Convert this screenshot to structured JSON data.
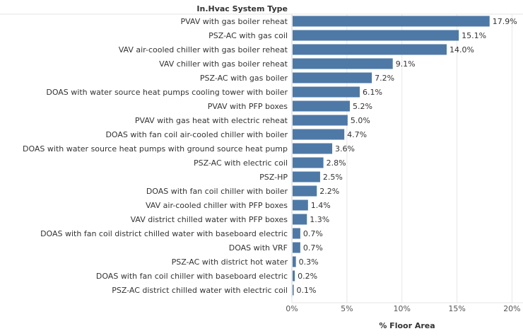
{
  "chart_data": {
    "type": "bar",
    "orientation": "horizontal",
    "row_header": "In.Hvac System Type",
    "xlabel": "% Floor Area",
    "xlim": [
      0,
      21
    ],
    "xticks": [
      0,
      5,
      10,
      15,
      20
    ],
    "xtick_labels": [
      "0%",
      "5%",
      "10%",
      "15%",
      "20%"
    ],
    "grid": true,
    "bar_color": "#4e79a7",
    "categories": [
      "PVAV with gas boiler reheat",
      "PSZ-AC with gas coil",
      "VAV air-cooled chiller with gas boiler reheat",
      "VAV chiller with gas boiler reheat",
      "PSZ-AC with gas boiler",
      "DOAS with water source heat pumps cooling tower with boiler",
      "PVAV with PFP boxes",
      "PVAV with gas heat with electric reheat",
      "DOAS with fan coil air-cooled chiller with boiler",
      "DOAS with water source heat pumps with ground source heat pump",
      "PSZ-AC with electric coil",
      "PSZ-HP",
      "DOAS with fan coil chiller with boiler",
      "VAV air-cooled chiller with PFP boxes",
      "VAV district chilled water with PFP boxes",
      "DOAS with fan coil district chilled water with baseboard electric",
      "DOAS with VRF",
      "PSZ-AC with district hot water",
      "DOAS with fan coil chiller with baseboard electric",
      "PSZ-AC district chilled water with electric coil"
    ],
    "values": [
      17.9,
      15.1,
      14.0,
      9.1,
      7.2,
      6.1,
      5.2,
      5.0,
      4.7,
      3.6,
      2.8,
      2.5,
      2.2,
      1.4,
      1.3,
      0.7,
      0.7,
      0.3,
      0.2,
      0.1
    ],
    "value_labels": [
      "17.9%",
      "15.1%",
      "14.0%",
      "9.1%",
      "7.2%",
      "6.1%",
      "5.2%",
      "5.0%",
      "4.7%",
      "3.6%",
      "2.8%",
      "2.5%",
      "2.2%",
      "1.4%",
      "1.3%",
      "0.7%",
      "0.7%",
      "0.3%",
      "0.2%",
      "0.1%"
    ]
  }
}
